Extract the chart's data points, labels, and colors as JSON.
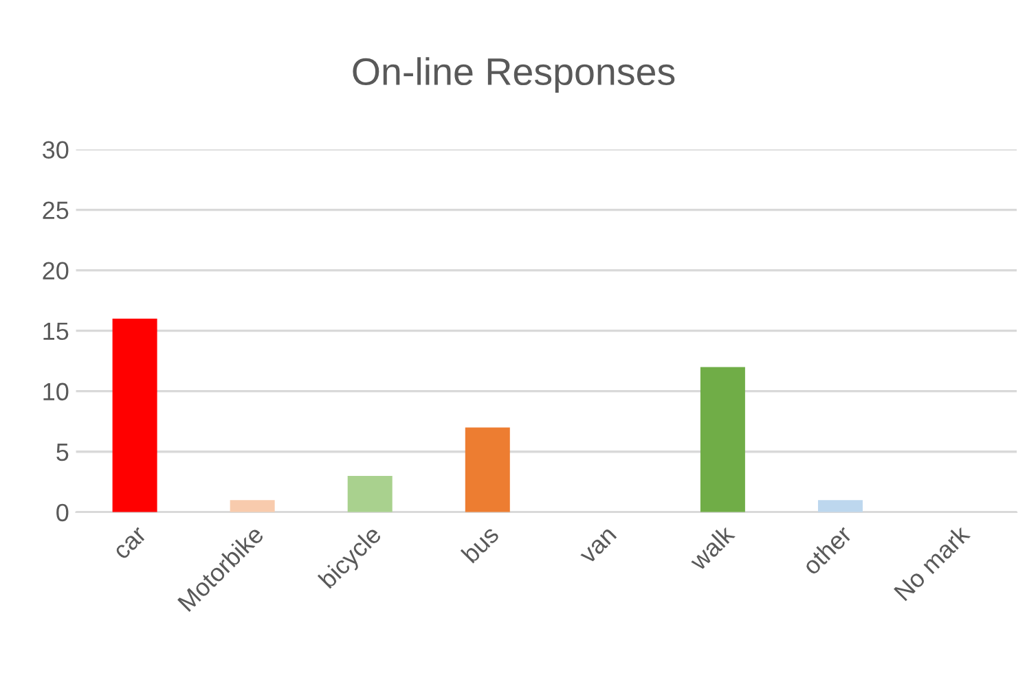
{
  "chart_data": {
    "type": "bar",
    "title": "On-line Responses",
    "categories": [
      "car",
      "Motorbike",
      "bicycle",
      "bus",
      "van",
      "walk",
      "other",
      "No mark"
    ],
    "values": [
      16,
      1,
      3,
      7,
      0,
      12,
      1,
      0
    ],
    "colors": [
      "#ff0000",
      "#f8cbad",
      "#a9d18e",
      "#ed7d31",
      "#ffc000",
      "#70ad47",
      "#bdd7ee",
      "#4472c4"
    ],
    "ylim": [
      0,
      30
    ],
    "yticks": [
      0,
      5,
      10,
      15,
      20,
      25,
      30
    ],
    "grid": "y",
    "legend": false
  }
}
